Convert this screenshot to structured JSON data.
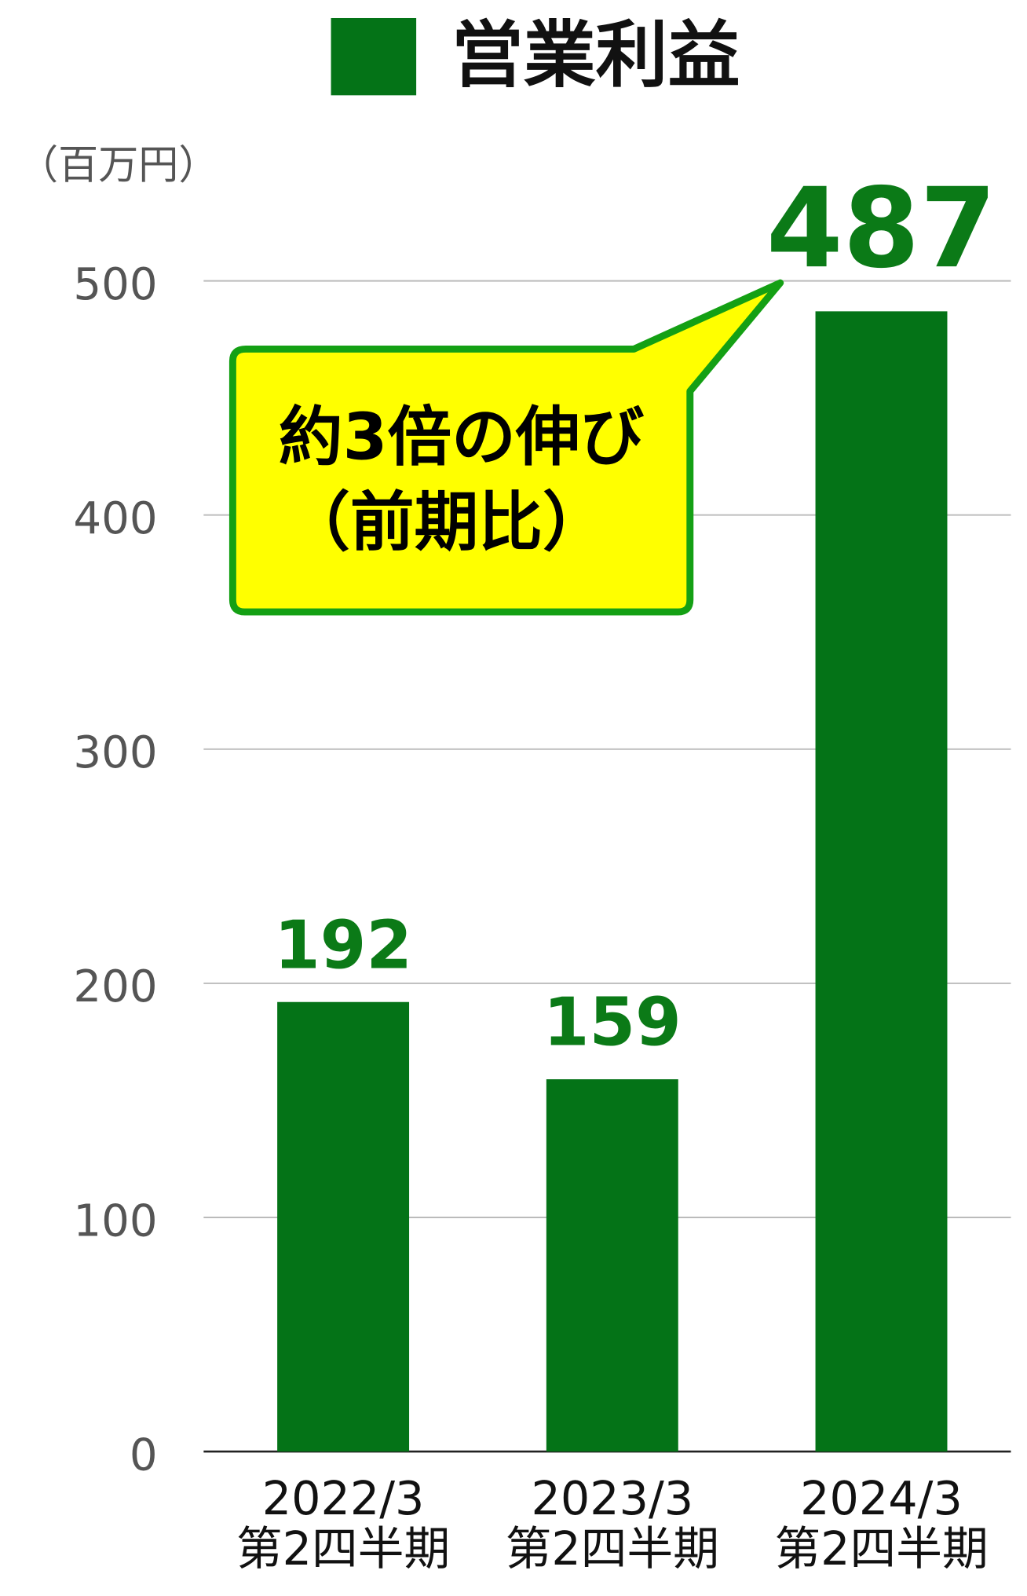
{
  "chart_data": {
    "type": "bar",
    "title": "営業利益",
    "unit_label": "（百万円）",
    "categories": [
      [
        "2022/3",
        "第2四半期"
      ],
      [
        "2023/3",
        "第2四半期"
      ],
      [
        "2024/3",
        "第2四半期"
      ]
    ],
    "values": [
      192,
      159,
      487
    ],
    "color": "#047317",
    "ylim": [
      0,
      500
    ],
    "yticks": [
      0,
      100,
      200,
      300,
      400,
      500
    ],
    "grid": true,
    "annotation": [
      "約3倍の伸び",
      "（前期比）"
    ]
  }
}
